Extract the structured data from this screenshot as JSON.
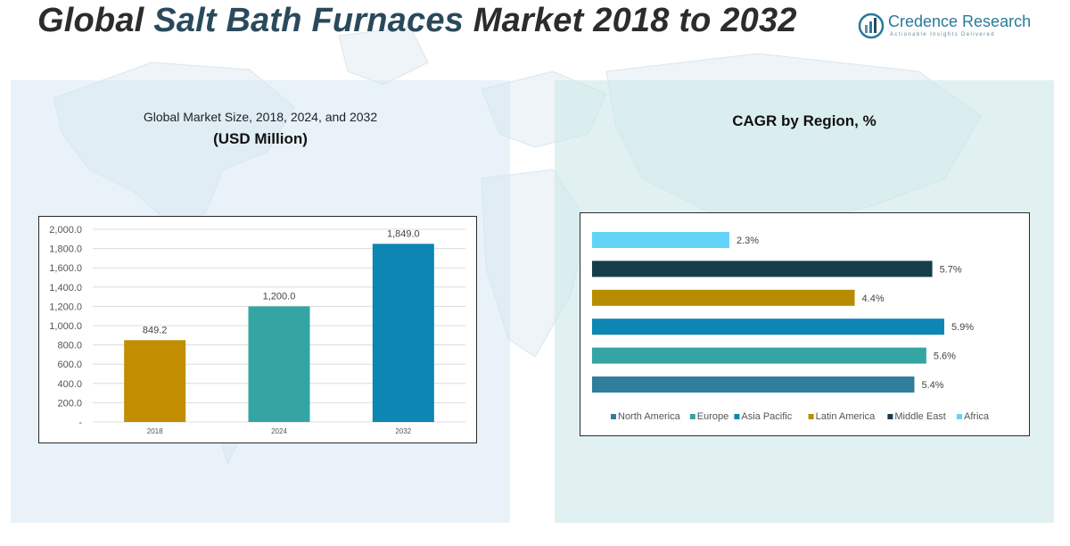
{
  "page": {
    "title_pre": "Global ",
    "title_highlight": "Salt Bath Furnaces",
    "title_post": " Market 2018 to 2032",
    "brand_name": "Credence Research",
    "brand_tagline": "Actionable Insights Delivered"
  },
  "left_panel": {
    "title_line1": "Global Market Size, 2018, 2024, and 2032",
    "title_line2": "(USD Million)"
  },
  "right_panel": {
    "title": "CAGR by Region, %"
  },
  "colors": {
    "accent": "#2a4a5c",
    "bar_2018": "#c08e00",
    "bar_2024": "#35a5a3",
    "bar_2032": "#0d86b4",
    "north_america": "#2f7f9c",
    "europe": "#35a5a3",
    "asia_pacific": "#0d86b4",
    "latin_america": "#b88c00",
    "middle_east": "#173c4c",
    "africa": "#63d3f8"
  },
  "chart_data": [
    {
      "type": "bar",
      "title": "Global Market Size, 2018, 2024, and 2032",
      "subtitle": "(USD Million)",
      "categories": [
        "2018",
        "2024",
        "2032"
      ],
      "values": [
        849.2,
        1200.0,
        1849.0
      ],
      "value_labels": [
        "849.2",
        "1,200.0",
        "1,849.0"
      ],
      "bar_colors": [
        "#c08e00",
        "#35a5a3",
        "#0d86b4"
      ],
      "ylim": [
        0,
        2000
      ],
      "yticks": [
        0,
        200,
        400,
        600,
        800,
        1000,
        1200,
        1400,
        1600,
        1800,
        2000
      ],
      "ytick_labels": [
        "-",
        "200.0",
        "400.0",
        "600.0",
        "800.0",
        "1,000.0",
        "1,200.0",
        "1,400.0",
        "1,600.0",
        "1,800.0",
        "2,000.0"
      ],
      "grid": true
    },
    {
      "type": "bar",
      "orientation": "horizontal",
      "title": "CAGR by Region, %",
      "series": [
        {
          "name": "North America",
          "value": 5.4,
          "label": "5.4%",
          "color": "#2f7f9c"
        },
        {
          "name": "Europe",
          "value": 5.6,
          "label": "5.6%",
          "color": "#35a5a3"
        },
        {
          "name": "Asia Pacific",
          "value": 5.9,
          "label": "5.9%",
          "color": "#0d86b4"
        },
        {
          "name": "Latin America",
          "value": 4.4,
          "label": "4.4%",
          "color": "#b88c00"
        },
        {
          "name": "Middle East",
          "value": 5.7,
          "label": "5.7%",
          "color": "#173c4c"
        },
        {
          "name": "Africa",
          "value": 2.3,
          "label": "2.3%",
          "color": "#63d3f8"
        }
      ],
      "xlim": [
        0,
        6.05
      ],
      "legend_position": "bottom",
      "grid": false
    }
  ]
}
